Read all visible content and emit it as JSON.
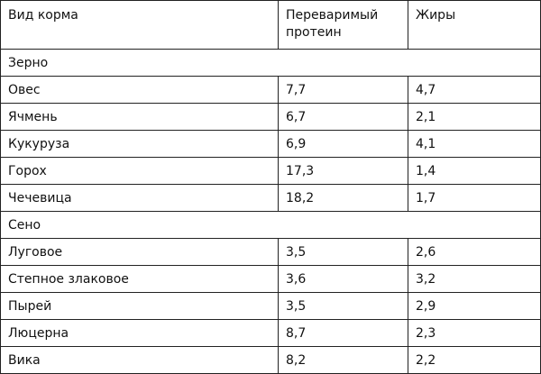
{
  "table": {
    "header": [
      "Вид корма",
      "Переваримый протеин",
      "Жиры"
    ],
    "sections": [
      {
        "title": "Зерно",
        "rows": [
          [
            "Овес",
            "7,7",
            "4,7"
          ],
          [
            "Ячмень",
            "6,7",
            "2,1"
          ],
          [
            "Кукуруза",
            "6,9",
            "4,1"
          ],
          [
            "Горох",
            "17,3",
            "1,4"
          ],
          [
            "Чечевица",
            "18,2",
            "1,7"
          ]
        ]
      },
      {
        "title": "Сено",
        "rows": [
          [
            "Луговое",
            "3,5",
            "2,6"
          ],
          [
            "Степное злаковое",
            "3,6",
            "3,2"
          ],
          [
            "Пырей",
            "3,5",
            "2,9"
          ],
          [
            "Люцерна",
            "8,7",
            "2,3"
          ],
          [
            "Вика",
            "8,2",
            "2,2"
          ]
        ]
      }
    ]
  }
}
